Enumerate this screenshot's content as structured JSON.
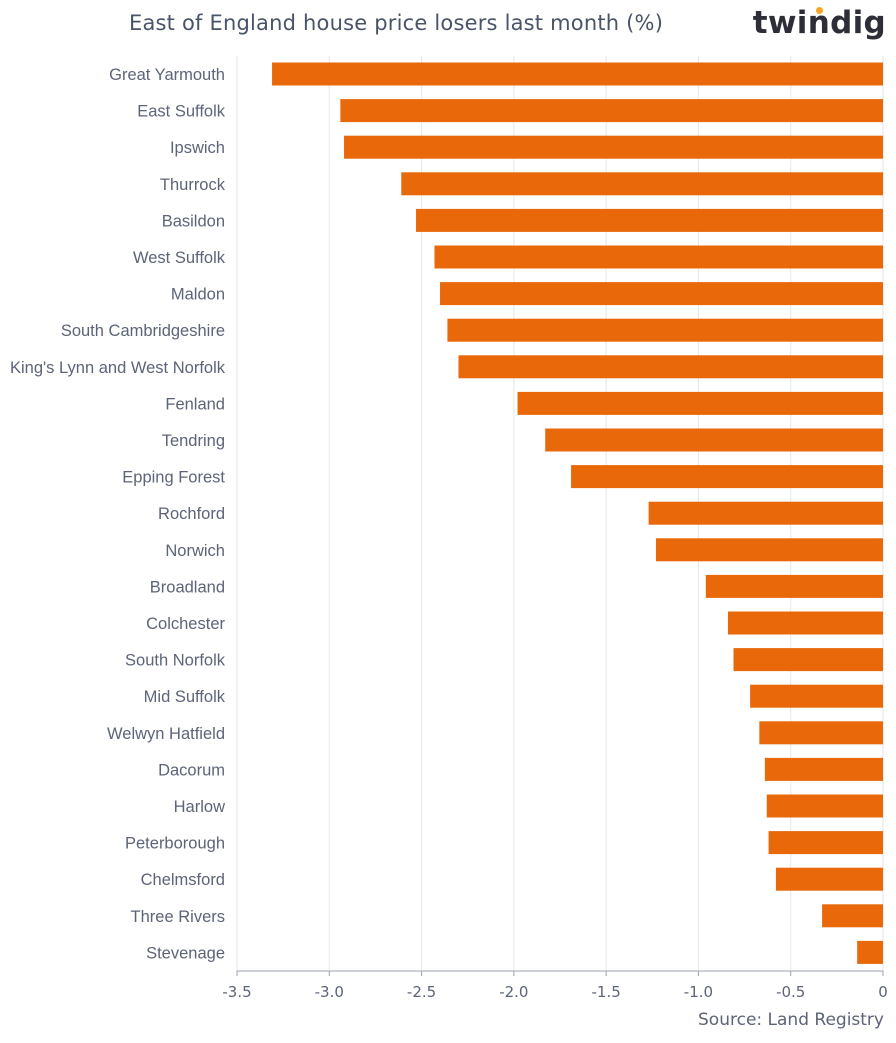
{
  "header": {
    "title": "East of England house price losers last month (%)",
    "brand": "twindig"
  },
  "footer": {
    "source": "Source: Land Registry"
  },
  "colors": {
    "bar": "#e8680a",
    "grid": "#e6e6e6",
    "axis": "#9aa0ac",
    "text": "#5d6478",
    "brand_dot": "#f5a623"
  },
  "chart_data": {
    "type": "bar",
    "orientation": "horizontal",
    "title": "East of England house price losers last month (%)",
    "xlabel": "",
    "ylabel": "",
    "xlim": [
      -3.5,
      0
    ],
    "xticks": [
      -3.5,
      -3.0,
      -2.5,
      -2.0,
      -1.5,
      -1.0,
      -0.5,
      0
    ],
    "xtick_labels": [
      "-3.5",
      "-3.0",
      "-2.5",
      "-2.0",
      "-1.5",
      "-1.0",
      "-0.5",
      "0"
    ],
    "grid": true,
    "categories": [
      "Great Yarmouth",
      "East Suffolk",
      "Ipswich",
      "Thurrock",
      "Basildon",
      "West Suffolk",
      "Maldon",
      "South Cambridgeshire",
      "King's Lynn and West Norfolk",
      "Fenland",
      "Tendring",
      "Epping Forest",
      "Rochford",
      "Norwich",
      "Broadland",
      "Colchester",
      "South Norfolk",
      "Mid Suffolk",
      "Welwyn Hatfield",
      "Dacorum",
      "Harlow",
      "Peterborough",
      "Chelmsford",
      "Three Rivers",
      "Stevenage"
    ],
    "values": [
      -3.31,
      -2.94,
      -2.92,
      -2.61,
      -2.53,
      -2.43,
      -2.4,
      -2.36,
      -2.3,
      -1.98,
      -1.83,
      -1.69,
      -1.27,
      -1.23,
      -0.96,
      -0.84,
      -0.81,
      -0.72,
      -0.67,
      -0.64,
      -0.63,
      -0.62,
      -0.58,
      -0.33,
      -0.14
    ]
  }
}
